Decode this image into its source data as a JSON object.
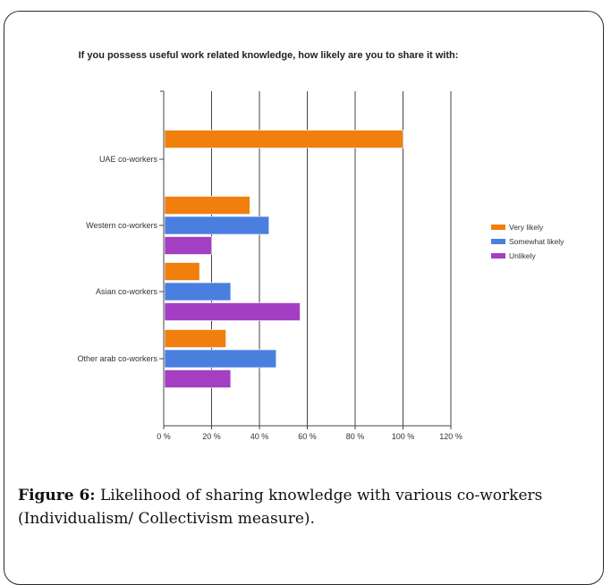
{
  "chart_data": {
    "type": "bar",
    "orientation": "horizontal",
    "title": "If you possess useful work related knowledge, how likely are you to share it with:",
    "categories": [
      "UAE co-workers",
      "Western co-workers",
      "Asian co-workers",
      "Other arab co-workers"
    ],
    "series": [
      {
        "name": "Very likely",
        "color": "#f07f0e",
        "values": [
          100,
          36,
          15,
          26
        ]
      },
      {
        "name": "Somewhat likely",
        "color": "#4a7fe0",
        "values": [
          0,
          44,
          28,
          47
        ]
      },
      {
        "name": "Unlikely",
        "color": "#a43fc4",
        "values": [
          0,
          20,
          57,
          28
        ]
      }
    ],
    "x_ticks": [
      "0 %",
      "20 %",
      "40 %",
      "60 %",
      "80 %",
      "100 %",
      "120 %"
    ],
    "xlim": [
      0,
      120
    ],
    "grid": true,
    "legend_position": "right"
  },
  "caption": {
    "label": "Figure 6:",
    "text": " Likelihood of sharing knowledge with various co-workers (Individualism/ Collectivism measure)."
  }
}
